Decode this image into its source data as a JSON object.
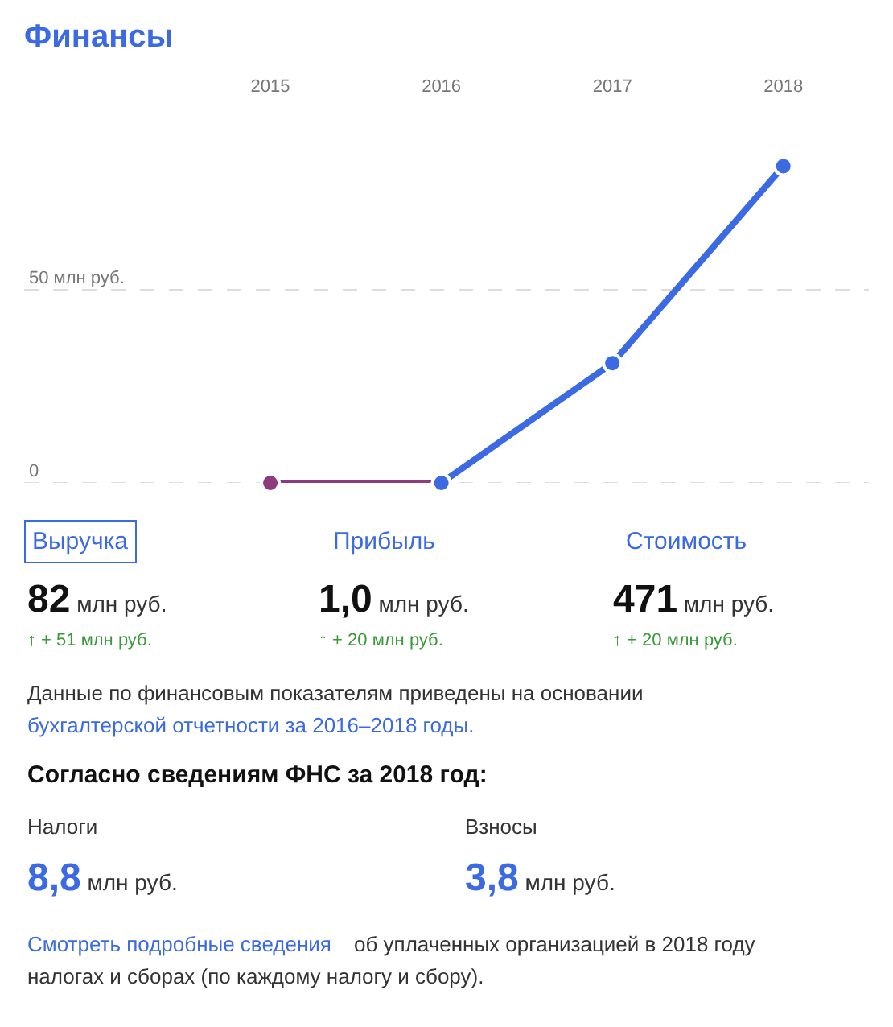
{
  "chart_data": {
    "type": "line",
    "title": "Финансы",
    "categories": [
      "2015",
      "2016",
      "2017",
      "2018"
    ],
    "series": [
      {
        "color": "#8e3a7e",
        "values": [
          0,
          0,
          null,
          null
        ]
      },
      {
        "color": "#3b6ae3",
        "values": [
          null,
          0,
          31,
          82
        ]
      }
    ],
    "ylim": [
      0,
      100
    ],
    "yticks": [
      0,
      {
        "value": 50,
        "label": "50 млн руб."
      },
      {
        "value": 100,
        "label": null
      }
    ],
    "grid": "y",
    "marker": "circle",
    "line_style": "solid",
    "legend": false,
    "annotations": [
      "Выручка",
      "Прибыль",
      "Стоимость",
      "82 млн руб.",
      "1,0 млн руб.",
      "471 млн руб.",
      "↑ + 51 млн руб.",
      "↑ + 20 млн руб.",
      "↑ + 20 млн руб.",
      "Данные по финансовым показателям приведены на основании",
      "бухгалтерской отчетности за 2016–2018 годы.",
      "Согласно сведениям ФНС за 2018 год:",
      "Налоги",
      "Взносы",
      "8,8 млн руб.",
      "3,8 млн руб.",
      "Смотреть подробные сведения",
      "об уплаченных организацией в 2018 году",
      "налогах и сборах (по каждому налогу и сбору)."
    ]
  }
}
